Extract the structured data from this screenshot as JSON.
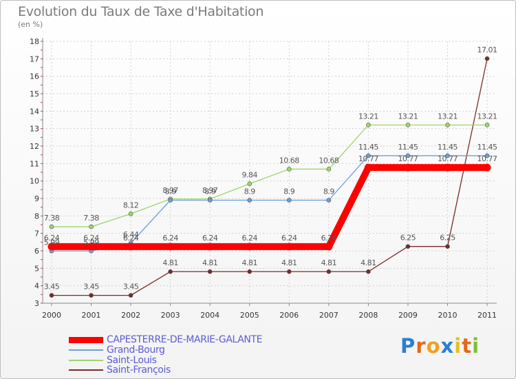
{
  "chart_data": {
    "type": "line",
    "title": "Evolution du Taux de Taxe d'Habitation",
    "subtitle": "(en %)",
    "xlabel": "",
    "ylabel": "",
    "categories": [
      "2000",
      "2001",
      "2002",
      "2003",
      "2004",
      "2005",
      "2006",
      "2007",
      "2008",
      "2009",
      "2010",
      "2011"
    ],
    "yticks": [
      3,
      4,
      5,
      6,
      7,
      8,
      9,
      10,
      11,
      12,
      13,
      14,
      15,
      16,
      17,
      18
    ],
    "ylim": [
      3,
      18
    ],
    "series": [
      {
        "name": "CAPESTERRE-DE-MARIE-GALANTE",
        "color": "#ff0000",
        "values": [
          6.24,
          6.24,
          6.24,
          6.24,
          6.24,
          6.24,
          6.24,
          6.24,
          10.77,
          10.77,
          10.77,
          10.77
        ],
        "labels": [
          "6.24",
          "6.24",
          "6.24",
          "6.24",
          "6.24",
          "6.24",
          "6.24",
          "6.24",
          "10.77",
          "10.77",
          "10.77",
          "10.77"
        ]
      },
      {
        "name": "Grand-Bourg",
        "color": "#6a9fd8",
        "values": [
          5.99,
          5.99,
          6.44,
          8.9,
          8.9,
          8.9,
          8.9,
          8.9,
          11.45,
          11.45,
          11.45,
          11.45
        ],
        "labels": [
          "5.99",
          "5.99",
          "6.44",
          "8.9",
          "8.9",
          "8.9",
          "8.9",
          "8.9",
          "11.45",
          "11.45",
          "11.45",
          "11.45"
        ]
      },
      {
        "name": "Saint-Louis",
        "color": "#9cd66b",
        "values": [
          7.38,
          7.38,
          8.12,
          8.97,
          8.97,
          9.84,
          10.68,
          10.68,
          13.21,
          13.21,
          13.21,
          13.21
        ],
        "labels": [
          "7.38",
          "7.38",
          "8.12",
          "8.97",
          "8.97",
          "9.84",
          "10.68",
          "10.68",
          "13.21",
          "13.21",
          "13.21",
          "13.21"
        ]
      },
      {
        "name": "Saint-François",
        "color": "#7a2a2a",
        "values": [
          3.45,
          3.45,
          3.45,
          4.81,
          4.81,
          4.81,
          4.81,
          4.81,
          4.81,
          6.25,
          6.25,
          17.01
        ],
        "labels": [
          "3.45",
          "3.45",
          "3.45",
          "4.81",
          "4.81",
          "4.81",
          "4.81",
          "4.81",
          "4.81",
          "6.25",
          "6.25",
          "17.01"
        ]
      }
    ],
    "legend_position": "bottom-left",
    "grid": true
  },
  "logo": {
    "letters": [
      "P",
      "r",
      "o",
      "x",
      "i",
      "t",
      "i"
    ],
    "colors": [
      "#2a7fd4",
      "#e06a1a",
      "#f0a020",
      "#2a7fd4",
      "#e8c020",
      "#e06a1a",
      "#7ac030"
    ]
  }
}
